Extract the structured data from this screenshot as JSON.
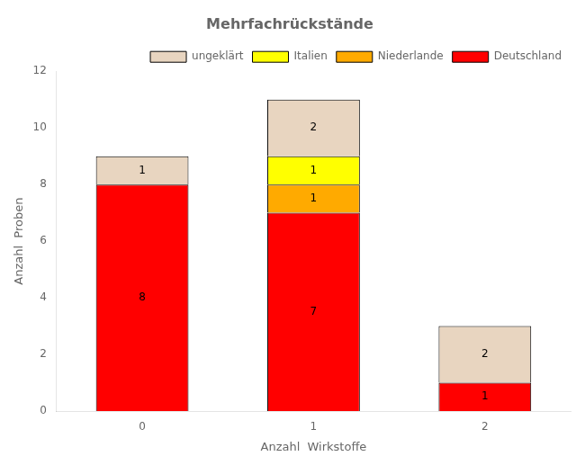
{
  "chart_data": {
    "type": "bar",
    "stacked": true,
    "title": "Mehrfachrückstände",
    "x_label": "Anzahl  Wirkstoffe",
    "y_label": "Anzahl  Proben",
    "categories": [
      "0",
      "1",
      "2"
    ],
    "series": [
      {
        "name": "Deutschland",
        "color": "#ff0000",
        "values": [
          8,
          7,
          1
        ]
      },
      {
        "name": "Niederlande",
        "color": "#ffaa00",
        "values": [
          0,
          1,
          0
        ]
      },
      {
        "name": "Italien",
        "color": "#ffff00",
        "values": [
          0,
          1,
          0
        ]
      },
      {
        "name": "ungeklärt",
        "color": "#e8d5c0",
        "values": [
          1,
          2,
          2
        ]
      }
    ],
    "ylim": [
      0,
      12
    ],
    "yticks": [
      0,
      2,
      4,
      6,
      8,
      10,
      12
    ],
    "grid": false,
    "legend": "upper right",
    "data_labels": true
  }
}
